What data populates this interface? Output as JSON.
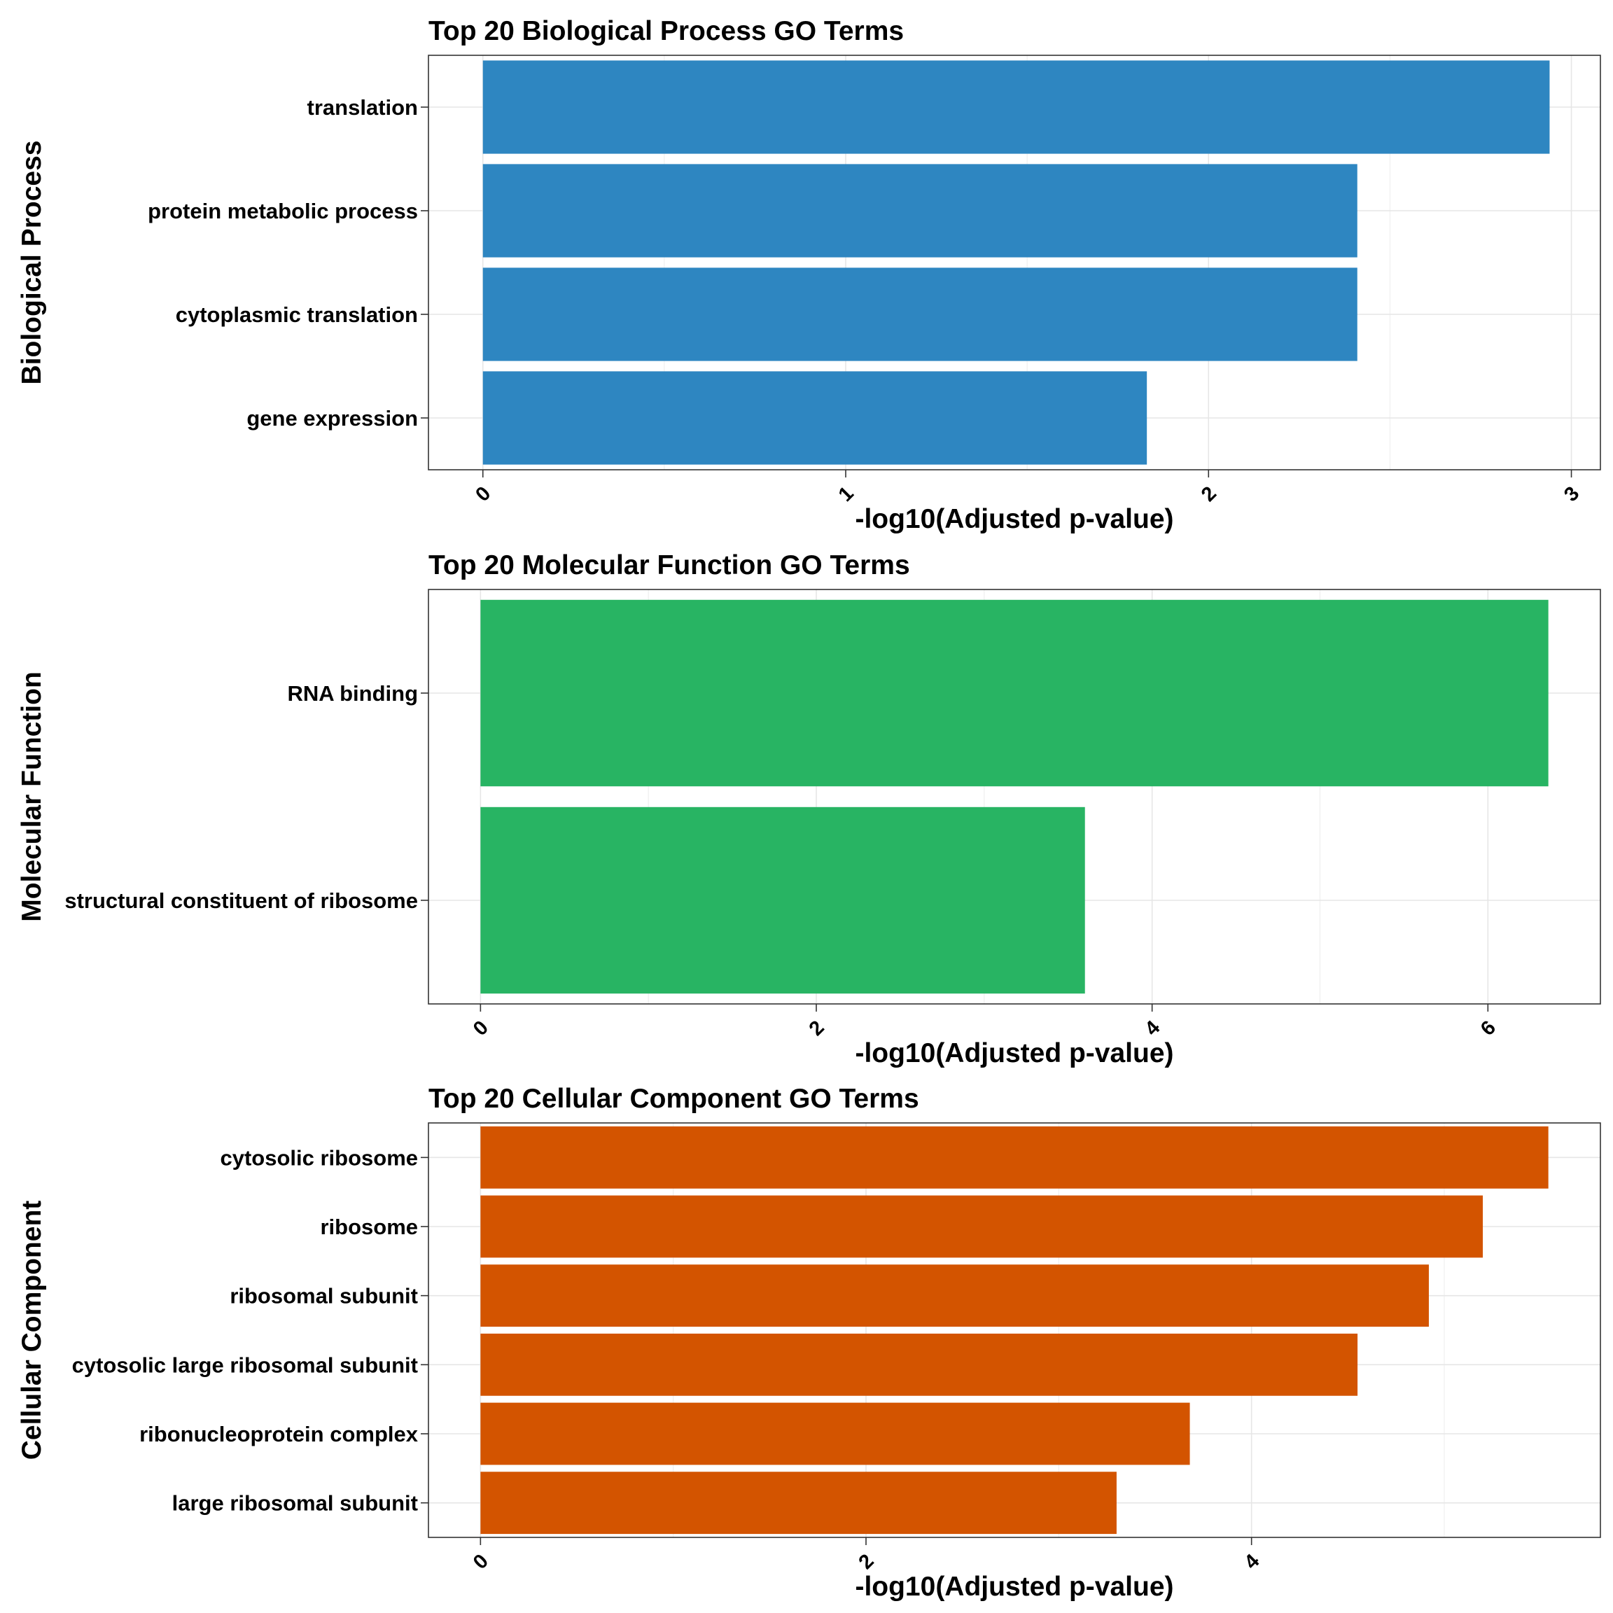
{
  "chart_data": [
    {
      "type": "bar",
      "orientation": "horizontal",
      "title": "Top 20 Biological Process GO Terms",
      "xlabel": "-log10(Adjusted p-value)",
      "ylabel": "Biological Process",
      "color": "#2E86C1",
      "categories": [
        "translation",
        "protein metabolic process",
        "cytoplasmic translation",
        "gene expression"
      ],
      "values": [
        2.94,
        2.41,
        2.41,
        1.83
      ],
      "xlim": [
        -0.15,
        3.08
      ],
      "xticks": [
        0,
        1,
        2,
        3
      ],
      "grid": true
    },
    {
      "type": "bar",
      "orientation": "horizontal",
      "title": "Top 20 Molecular Function GO Terms",
      "xlabel": "-log10(Adjusted p-value)",
      "ylabel": "Molecular Function",
      "color": "#28B463",
      "categories": [
        "RNA binding",
        "structural constituent of ribosome"
      ],
      "values": [
        6.36,
        3.6
      ],
      "xlim": [
        -0.31,
        6.67
      ],
      "xticks": [
        0,
        2,
        4,
        6
      ],
      "grid": true
    },
    {
      "type": "bar",
      "orientation": "horizontal",
      "title": "Top 20 Cellular Component GO Terms",
      "xlabel": "-log10(Adjusted p-value)",
      "ylabel": "Cellular Component",
      "color": "#D35400",
      "categories": [
        "cytosolic ribosome",
        "ribosome",
        "ribosomal subunit",
        "cytosolic large ribosomal subunit",
        "ribonucleoprotein complex",
        "large ribosomal subunit"
      ],
      "values": [
        5.54,
        5.2,
        4.92,
        4.55,
        3.68,
        3.3
      ],
      "xlim": [
        -0.27,
        5.81
      ],
      "xticks": [
        0,
        2,
        4
      ],
      "grid": true
    }
  ]
}
